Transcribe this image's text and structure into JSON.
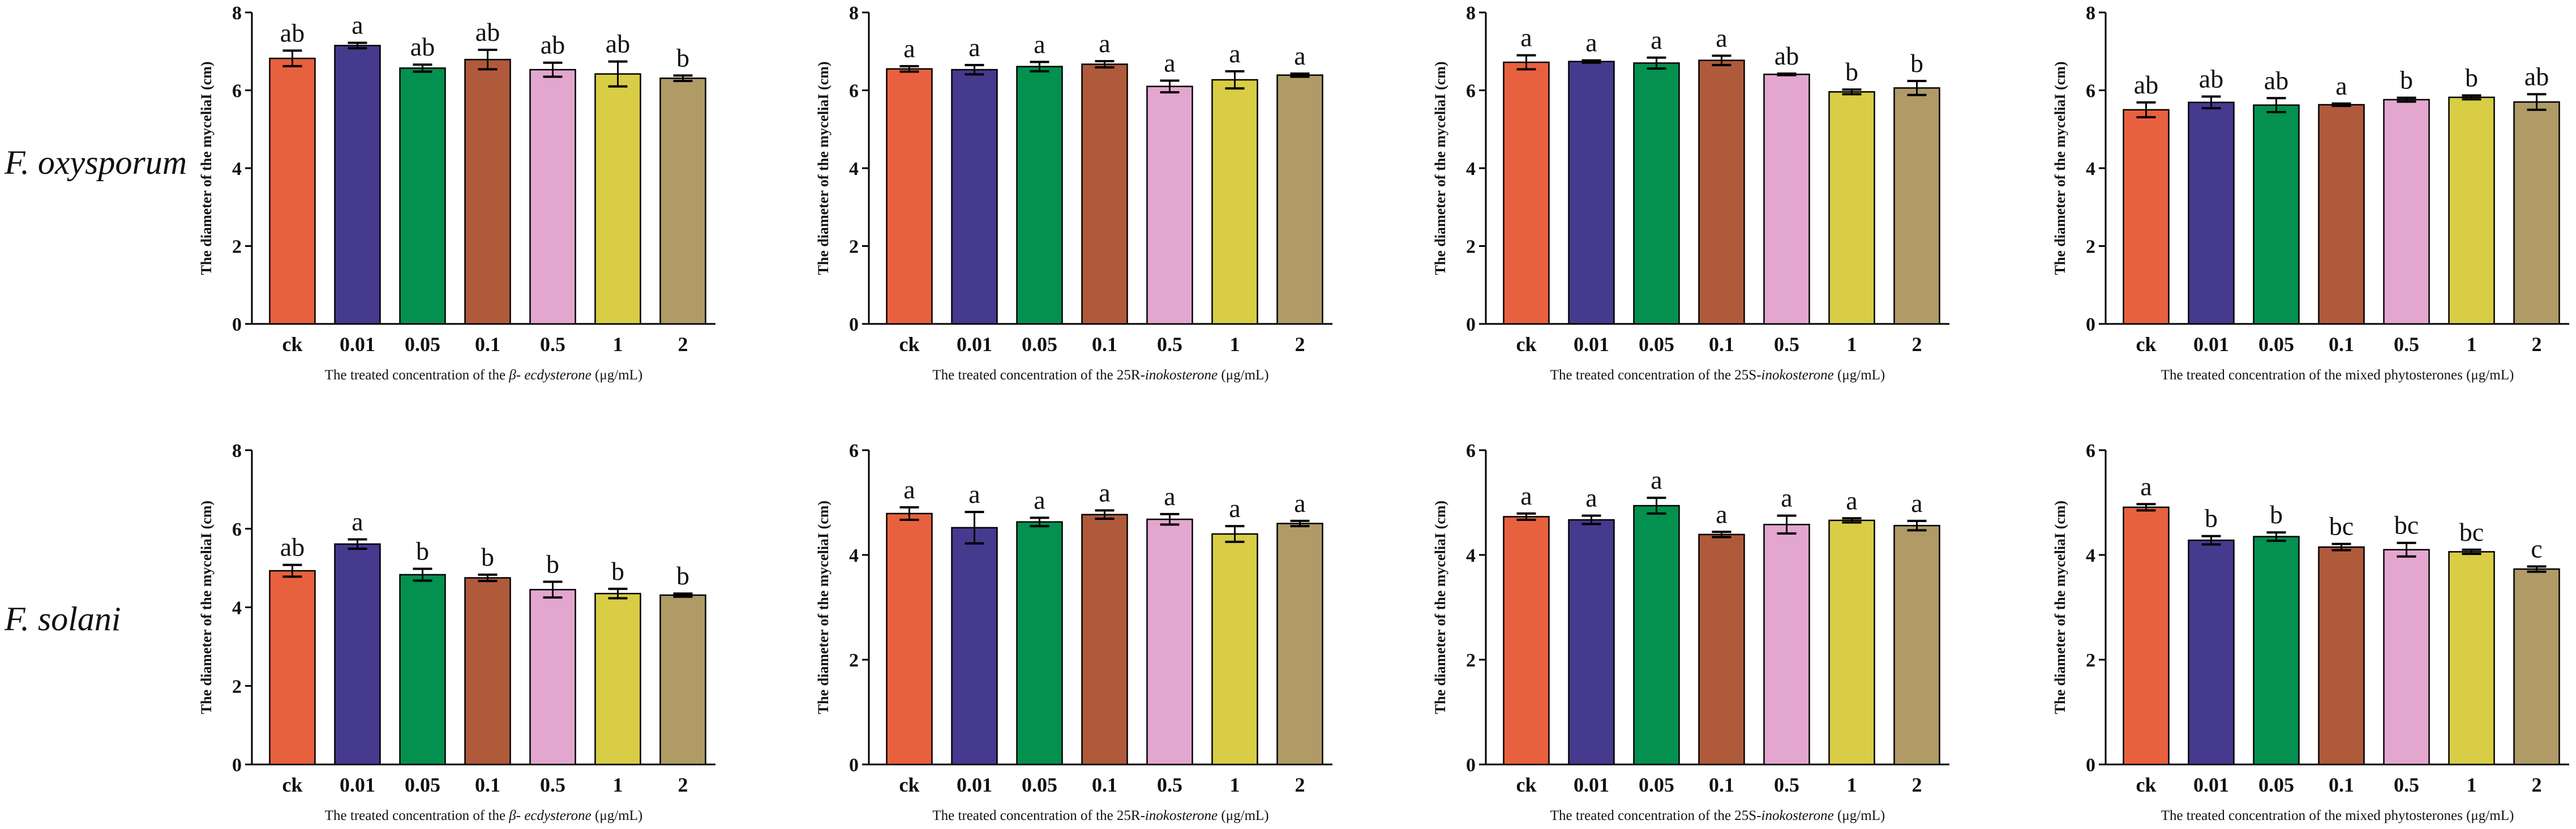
{
  "figure": {
    "row_labels": [
      "F. oxysporum",
      "F. solani"
    ]
  },
  "colors": [
    "#E8613E",
    "#463A8F",
    "#04904F",
    "#B05A3C",
    "#E3A7CF",
    "#D8CD45",
    "#B09B67"
  ],
  "chart_data": [
    {
      "type": "bar",
      "row": 0,
      "col": 0,
      "categories": [
        "ck",
        "0.01",
        "0.05",
        "0.1",
        "0.5",
        "1",
        "2"
      ],
      "values": [
        6.82,
        7.15,
        6.57,
        6.79,
        6.53,
        6.42,
        6.31
      ],
      "errors": [
        0.2,
        0.07,
        0.09,
        0.25,
        0.18,
        0.32,
        0.07
      ],
      "significance": [
        "ab",
        "a",
        "ab",
        "ab",
        "ab",
        "ab",
        "b"
      ],
      "ylim": [
        0,
        8
      ],
      "yticks": [
        0,
        2,
        4,
        6,
        8
      ],
      "ylabel": "The diameter of the myceliaI (cm)",
      "xlabel_parts": [
        "The treated concentration of the ",
        "β- ecdysterone",
        " (μg/mL)"
      ]
    },
    {
      "type": "bar",
      "row": 0,
      "col": 1,
      "categories": [
        "ck",
        "0.01",
        "0.05",
        "0.1",
        "0.5",
        "1",
        "2"
      ],
      "values": [
        6.55,
        6.53,
        6.61,
        6.67,
        6.1,
        6.27,
        6.39
      ],
      "errors": [
        0.07,
        0.12,
        0.12,
        0.08,
        0.15,
        0.22,
        0.04
      ],
      "significance": [
        "a",
        "a",
        "a",
        "a",
        "a",
        "a",
        "a"
      ],
      "ylim": [
        0,
        8
      ],
      "yticks": [
        0,
        2,
        4,
        6,
        8
      ],
      "ylabel": "The diameter of the myceliaI (cm)",
      "xlabel_parts": [
        "The treated concentration of the 25R-",
        "inokosterone",
        " (μg/mL)"
      ]
    },
    {
      "type": "bar",
      "row": 0,
      "col": 2,
      "categories": [
        "ck",
        "0.01",
        "0.05",
        "0.1",
        "0.5",
        "1",
        "2"
      ],
      "values": [
        6.72,
        6.74,
        6.7,
        6.77,
        6.41,
        5.96,
        6.06
      ],
      "errors": [
        0.18,
        0.03,
        0.14,
        0.12,
        0.02,
        0.06,
        0.18
      ],
      "significance": [
        "a",
        "a",
        "a",
        "a",
        "ab",
        "b",
        "b"
      ],
      "ylim": [
        0,
        8
      ],
      "yticks": [
        0,
        2,
        4,
        6,
        8
      ],
      "ylabel": "The diameter of the myceliaI (cm)",
      "xlabel_parts": [
        "The treated concentration of the 25S-",
        "inokosterone",
        " (μg/mL)"
      ]
    },
    {
      "type": "bar",
      "row": 0,
      "col": 3,
      "categories": [
        "ck",
        "0.01",
        "0.05",
        "0.1",
        "0.5",
        "1",
        "2"
      ],
      "values": [
        5.5,
        5.69,
        5.62,
        5.63,
        5.76,
        5.82,
        5.7
      ],
      "errors": [
        0.19,
        0.15,
        0.18,
        0.03,
        0.05,
        0.05,
        0.2
      ],
      "significance": [
        "ab",
        "ab",
        "ab",
        "a",
        "b",
        "b",
        "ab"
      ],
      "ylim": [
        0,
        8
      ],
      "yticks": [
        0,
        2,
        4,
        6,
        8
      ],
      "ylabel": "The diameter of the myceliaI (cm)",
      "xlabel_parts": [
        "The treated concentration of the mixed phytosterones (μg/mL)"
      ]
    },
    {
      "type": "bar",
      "row": 1,
      "col": 0,
      "categories": [
        "ck",
        "0.01",
        "0.05",
        "0.1",
        "0.5",
        "1",
        "2"
      ],
      "values": [
        4.93,
        5.61,
        4.83,
        4.75,
        4.45,
        4.35,
        4.31
      ],
      "errors": [
        0.15,
        0.12,
        0.15,
        0.08,
        0.2,
        0.12,
        0.04
      ],
      "significance": [
        "ab",
        "a",
        "b",
        "b",
        "b",
        "b",
        "b"
      ],
      "ylim": [
        0,
        8
      ],
      "yticks": [
        0,
        2,
        4,
        6,
        8
      ],
      "ylabel": "The diameter of the myceliaI (cm)",
      "xlabel_parts": [
        "The treated concentration of the ",
        "β- ecdysterone",
        " (μg/mL)"
      ]
    },
    {
      "type": "bar",
      "row": 1,
      "col": 1,
      "categories": [
        "ck",
        "0.01",
        "0.05",
        "0.1",
        "0.5",
        "1",
        "2"
      ],
      "values": [
        4.79,
        4.52,
        4.63,
        4.77,
        4.68,
        4.4,
        4.6
      ],
      "errors": [
        0.12,
        0.3,
        0.08,
        0.08,
        0.1,
        0.15,
        0.05
      ],
      "significance": [
        "a",
        "a",
        "a",
        "a",
        "a",
        "a",
        "a"
      ],
      "ylim": [
        0,
        6
      ],
      "yticks": [
        0,
        2,
        4,
        6
      ],
      "ylabel": "The diameter of the myceliaI (cm)",
      "xlabel_parts": [
        "The treated concentration of the 25R-",
        "inokosterone",
        " (μg/mL)"
      ]
    },
    {
      "type": "bar",
      "row": 1,
      "col": 2,
      "categories": [
        "ck",
        "0.01",
        "0.05",
        "0.1",
        "0.5",
        "1",
        "2"
      ],
      "values": [
        4.73,
        4.67,
        4.94,
        4.39,
        4.58,
        4.66,
        4.56
      ],
      "errors": [
        0.06,
        0.08,
        0.15,
        0.05,
        0.17,
        0.04,
        0.09
      ],
      "significance": [
        "a",
        "a",
        "a",
        "a",
        "a",
        "a",
        "a"
      ],
      "ylim": [
        0,
        6
      ],
      "yticks": [
        0,
        2,
        4,
        6
      ],
      "ylabel": "The diameter of the myceliaI (cm)",
      "xlabel_parts": [
        "The treated concentration of the 25S-",
        "inokosterone",
        " (μg/mL)"
      ]
    },
    {
      "type": "bar",
      "row": 1,
      "col": 3,
      "categories": [
        "ck",
        "0.01",
        "0.05",
        "0.1",
        "0.5",
        "1",
        "2"
      ],
      "values": [
        4.91,
        4.28,
        4.35,
        4.15,
        4.1,
        4.06,
        3.73
      ],
      "errors": [
        0.06,
        0.08,
        0.08,
        0.06,
        0.13,
        0.04,
        0.05
      ],
      "significance": [
        "a",
        "b",
        "b",
        "bc",
        "bc",
        "bc",
        "c"
      ],
      "ylim": [
        0,
        6
      ],
      "yticks": [
        0,
        2,
        4,
        6
      ],
      "ylabel": "The diameter of the myceliaI (cm)",
      "xlabel_parts": [
        "The treated concentration of the mixed phytosterones (μg/mL)"
      ]
    }
  ]
}
